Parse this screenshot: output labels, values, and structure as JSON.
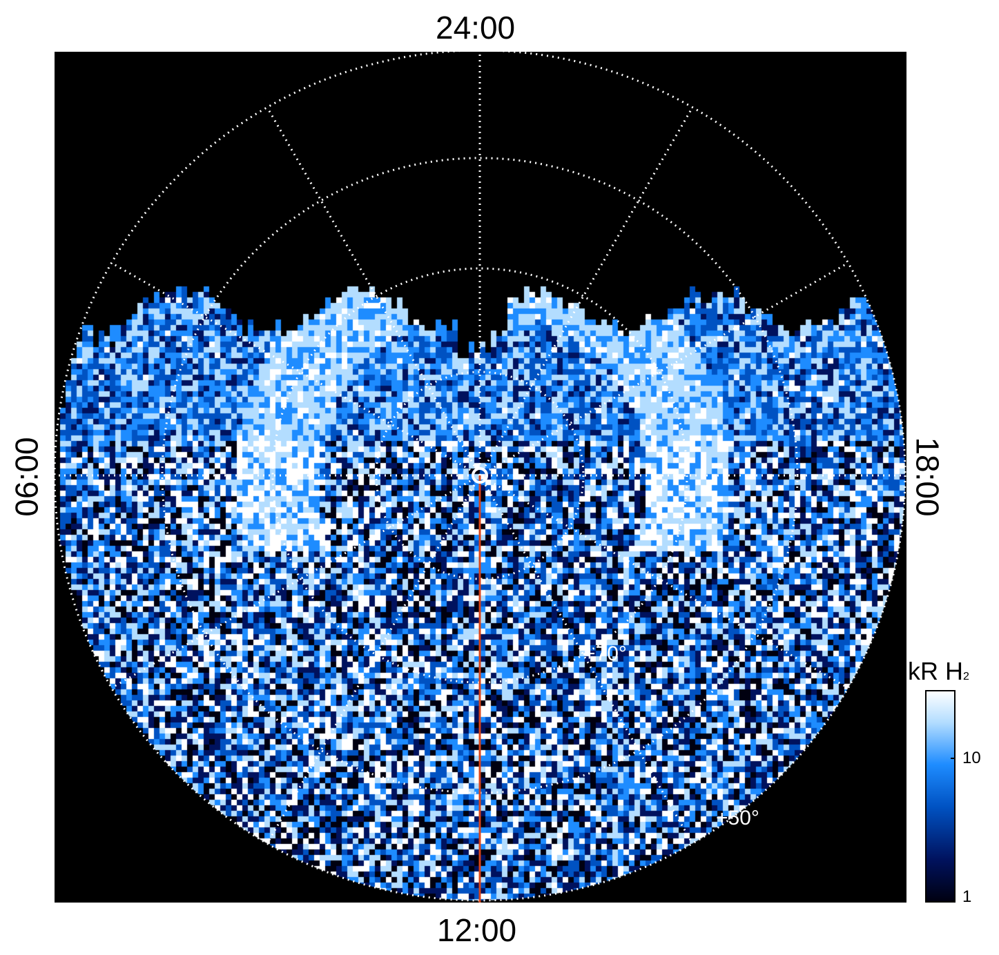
{
  "labels": {
    "top": "24:00",
    "bottom": "12:00",
    "left": "06:00",
    "right": "18:00"
  },
  "latitude_labels": [
    "+70°",
    "+50°"
  ],
  "colorbar": {
    "title": "kR H",
    "title_sub": "2",
    "scale": "log",
    "range": [
      1,
      25
    ],
    "ticks": [
      "10",
      "1"
    ],
    "colors": [
      "#000010",
      "#00125e",
      "#0052c2",
      "#1e8cff",
      "#b3ddff",
      "#ffffff"
    ]
  },
  "colors": {
    "background": "#000000",
    "grid": "#ffffff",
    "meridian_line": "#d9441a",
    "emission": "#1e8cff"
  }
}
